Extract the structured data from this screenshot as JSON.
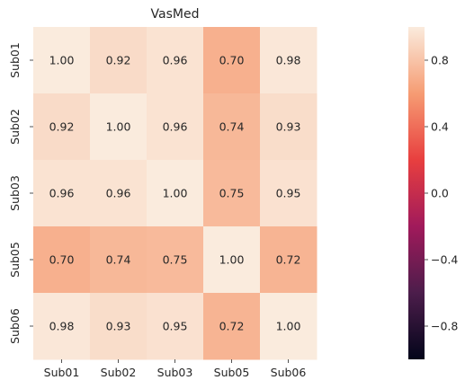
{
  "chart_data": {
    "type": "heatmap",
    "title": "VasMed",
    "xlabel": "",
    "ylabel": "",
    "x_categories": [
      "Sub01",
      "Sub02",
      "Sub03",
      "Sub05",
      "Sub06"
    ],
    "y_categories": [
      "Sub01",
      "Sub02",
      "Sub03",
      "Sub05",
      "Sub06"
    ],
    "values": [
      [
        1.0,
        0.92,
        0.96,
        0.7,
        0.98
      ],
      [
        0.92,
        1.0,
        0.96,
        0.74,
        0.93
      ],
      [
        0.96,
        0.96,
        1.0,
        0.75,
        0.95
      ],
      [
        0.7,
        0.74,
        0.75,
        1.0,
        0.72
      ],
      [
        0.98,
        0.93,
        0.95,
        0.72,
        1.0
      ]
    ],
    "annotation_format": "0.00",
    "colorbar": {
      "range": [
        -1.0,
        1.0
      ],
      "ticks": [
        0.8,
        0.4,
        0.0,
        -0.4,
        -0.8
      ],
      "tick_labels": [
        "0.8",
        "0.4",
        "0.0",
        "−0.4",
        "−0.8"
      ],
      "colormap": "rocket",
      "colormap_stops": [
        "#03051a",
        "#4c1d4b",
        "#a11a5b",
        "#e83f3f",
        "#f69c73",
        "#faebdd"
      ]
    },
    "grid": false
  }
}
